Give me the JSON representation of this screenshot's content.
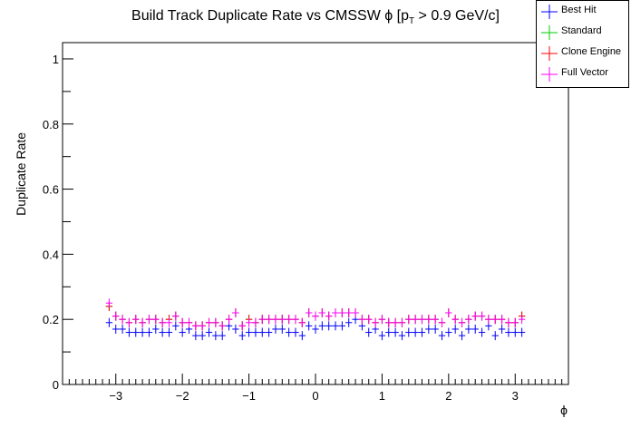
{
  "chart_data": {
    "type": "scatter",
    "title": "Build Track Duplicate Rate vs CMSSW ϕ [p_T > 0.9 GeV/c]",
    "title_main": "Build Track Duplicate Rate vs CMSSW ϕ [p",
    "title_sub": "T",
    "title_tail": " > 0.9 GeV/c]",
    "xlabel": "ϕ",
    "ylabel": "Duplicate Rate",
    "xlim": [
      -3.8,
      3.8
    ],
    "ylim": [
      0,
      1.05
    ],
    "x_ticks": [
      -3,
      -2,
      -1,
      0,
      1,
      2,
      3
    ],
    "x_tick_labels": [
      "−3",
      "−2",
      "−1",
      "0",
      "1",
      "2",
      "3"
    ],
    "y_ticks": [
      0,
      0.2,
      0.4,
      0.6,
      0.8,
      1
    ],
    "y_tick_labels": [
      "0",
      "0.2",
      "0.4",
      "0.6",
      "0.8",
      "1"
    ],
    "x": [
      -3.1,
      -3.0,
      -2.9,
      -2.8,
      -2.7,
      -2.6,
      -2.5,
      -2.4,
      -2.3,
      -2.2,
      -2.1,
      -2.0,
      -1.9,
      -1.8,
      -1.7,
      -1.6,
      -1.5,
      -1.4,
      -1.3,
      -1.2,
      -1.1,
      -1.0,
      -0.9,
      -0.8,
      -0.7,
      -0.6,
      -0.5,
      -0.4,
      -0.3,
      -0.2,
      -0.1,
      0.0,
      0.1,
      0.2,
      0.3,
      0.4,
      0.5,
      0.6,
      0.7,
      0.8,
      0.9,
      1.0,
      1.1,
      1.2,
      1.3,
      1.4,
      1.5,
      1.6,
      1.7,
      1.8,
      1.9,
      2.0,
      2.1,
      2.2,
      2.3,
      2.4,
      2.5,
      2.6,
      2.7,
      2.8,
      2.9,
      3.0,
      3.1
    ],
    "grid": false,
    "legend_position": "top-right",
    "series": [
      {
        "name": "Best Hit",
        "color": "#0000ff",
        "values": [
          0.19,
          0.17,
          0.17,
          0.16,
          0.16,
          0.16,
          0.16,
          0.17,
          0.16,
          0.16,
          0.18,
          0.16,
          0.17,
          0.15,
          0.15,
          0.16,
          0.15,
          0.15,
          0.18,
          0.17,
          0.15,
          0.16,
          0.16,
          0.16,
          0.16,
          0.17,
          0.17,
          0.16,
          0.16,
          0.15,
          0.18,
          0.17,
          0.18,
          0.18,
          0.18,
          0.18,
          0.19,
          0.2,
          0.18,
          0.16,
          0.17,
          0.15,
          0.16,
          0.16,
          0.15,
          0.16,
          0.16,
          0.16,
          0.17,
          0.17,
          0.15,
          0.16,
          0.17,
          0.15,
          0.17,
          0.17,
          0.16,
          0.18,
          0.15,
          0.17,
          0.16,
          0.16,
          0.16
        ]
      },
      {
        "name": "Standard",
        "color": "#00cc00",
        "values": [
          0.24,
          0.21,
          0.2,
          0.19,
          0.2,
          0.19,
          0.2,
          0.2,
          0.19,
          0.2,
          0.21,
          0.19,
          0.19,
          0.18,
          0.18,
          0.19,
          0.19,
          0.18,
          0.2,
          0.22,
          0.18,
          0.2,
          0.19,
          0.2,
          0.2,
          0.2,
          0.2,
          0.2,
          0.2,
          0.19,
          0.22,
          0.21,
          0.22,
          0.21,
          0.22,
          0.22,
          0.22,
          0.22,
          0.2,
          0.2,
          0.19,
          0.2,
          0.19,
          0.19,
          0.19,
          0.2,
          0.2,
          0.2,
          0.2,
          0.2,
          0.19,
          0.22,
          0.2,
          0.19,
          0.2,
          0.21,
          0.21,
          0.2,
          0.2,
          0.2,
          0.19,
          0.19,
          0.21
        ]
      },
      {
        "name": "Clone Engine",
        "color": "#ff0000",
        "values": [
          0.24,
          0.21,
          0.2,
          0.19,
          0.2,
          0.19,
          0.2,
          0.2,
          0.19,
          0.2,
          0.21,
          0.19,
          0.19,
          0.18,
          0.18,
          0.19,
          0.19,
          0.18,
          0.2,
          0.22,
          0.18,
          0.2,
          0.19,
          0.2,
          0.2,
          0.2,
          0.2,
          0.2,
          0.2,
          0.19,
          0.22,
          0.21,
          0.22,
          0.21,
          0.22,
          0.22,
          0.22,
          0.22,
          0.2,
          0.2,
          0.19,
          0.2,
          0.19,
          0.19,
          0.19,
          0.2,
          0.2,
          0.2,
          0.2,
          0.2,
          0.19,
          0.22,
          0.2,
          0.19,
          0.2,
          0.21,
          0.21,
          0.2,
          0.2,
          0.2,
          0.19,
          0.19,
          0.21
        ]
      },
      {
        "name": "Full Vector",
        "color": "#ff00ff",
        "values": [
          0.25,
          0.21,
          0.2,
          0.19,
          0.2,
          0.19,
          0.2,
          0.2,
          0.19,
          0.19,
          0.21,
          0.19,
          0.19,
          0.18,
          0.18,
          0.19,
          0.19,
          0.18,
          0.2,
          0.22,
          0.18,
          0.19,
          0.19,
          0.2,
          0.2,
          0.2,
          0.2,
          0.2,
          0.2,
          0.19,
          0.22,
          0.21,
          0.22,
          0.21,
          0.22,
          0.22,
          0.22,
          0.22,
          0.2,
          0.2,
          0.19,
          0.2,
          0.19,
          0.19,
          0.19,
          0.2,
          0.2,
          0.2,
          0.2,
          0.2,
          0.19,
          0.22,
          0.2,
          0.19,
          0.2,
          0.21,
          0.21,
          0.2,
          0.2,
          0.2,
          0.19,
          0.19,
          0.2
        ]
      }
    ]
  }
}
